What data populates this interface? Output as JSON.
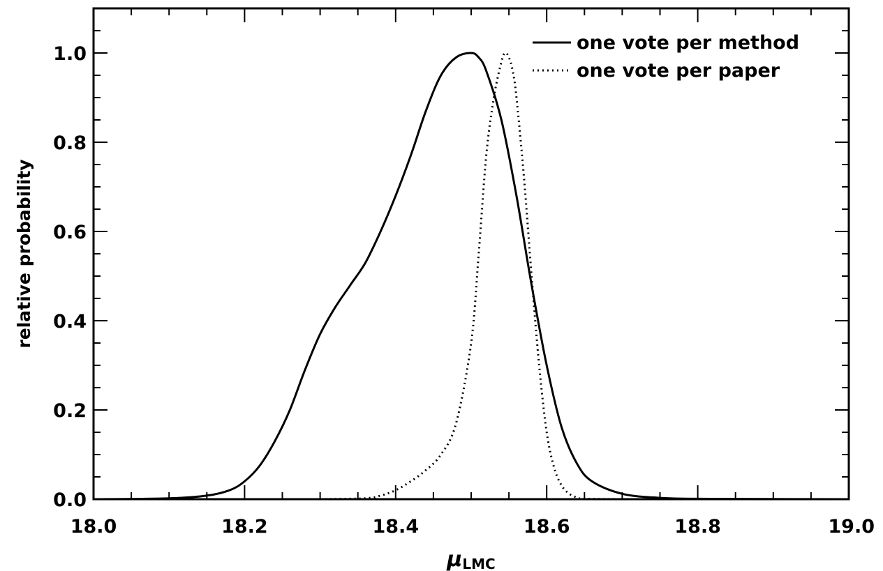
{
  "chart_data": {
    "type": "line",
    "title": "",
    "xlabel_main": "μ",
    "xlabel_sub": "LMC",
    "ylabel": "relative probability",
    "xlim": [
      18.0,
      19.0
    ],
    "ylim": [
      0.0,
      1.1
    ],
    "x_ticks": [
      "18.0",
      "18.2",
      "18.4",
      "18.6",
      "18.8",
      "19.0"
    ],
    "x_tick_values": [
      18.0,
      18.2,
      18.4,
      18.6,
      18.8,
      19.0
    ],
    "y_ticks": [
      "0.0",
      "0.2",
      "0.4",
      "0.6",
      "0.8",
      "1.0"
    ],
    "y_tick_values": [
      0.0,
      0.2,
      0.4,
      0.6,
      0.8,
      1.0
    ],
    "grid": false,
    "legend_position": "top-right",
    "series": [
      {
        "name": "one vote per method",
        "style": "solid",
        "x": [
          18.0,
          18.1,
          18.15,
          18.18,
          18.2,
          18.22,
          18.24,
          18.26,
          18.28,
          18.3,
          18.32,
          18.34,
          18.36,
          18.38,
          18.4,
          18.42,
          18.44,
          18.46,
          18.48,
          18.5,
          18.51,
          18.52,
          18.54,
          18.56,
          18.58,
          18.6,
          18.62,
          18.64,
          18.66,
          18.7,
          18.75,
          18.8,
          19.0
        ],
        "y": [
          0.0,
          0.002,
          0.008,
          0.02,
          0.04,
          0.075,
          0.13,
          0.2,
          0.29,
          0.37,
          0.43,
          0.48,
          0.53,
          0.6,
          0.68,
          0.77,
          0.87,
          0.95,
          0.99,
          1.0,
          0.99,
          0.96,
          0.85,
          0.68,
          0.48,
          0.3,
          0.16,
          0.08,
          0.04,
          0.012,
          0.003,
          0.001,
          0.0
        ]
      },
      {
        "name": "one vote per paper",
        "style": "dotted",
        "x": [
          18.3,
          18.36,
          18.38,
          18.4,
          18.42,
          18.44,
          18.46,
          18.48,
          18.5,
          18.51,
          18.52,
          18.53,
          18.54,
          18.545,
          18.55,
          18.555,
          18.56,
          18.57,
          18.58,
          18.59,
          18.6,
          18.61,
          18.62,
          18.63,
          18.64,
          18.65,
          18.7
        ],
        "y": [
          0.0,
          0.002,
          0.008,
          0.02,
          0.04,
          0.065,
          0.1,
          0.17,
          0.35,
          0.55,
          0.77,
          0.9,
          0.98,
          1.0,
          0.99,
          0.96,
          0.9,
          0.72,
          0.5,
          0.3,
          0.15,
          0.07,
          0.03,
          0.012,
          0.004,
          0.001,
          0.0
        ]
      }
    ]
  }
}
